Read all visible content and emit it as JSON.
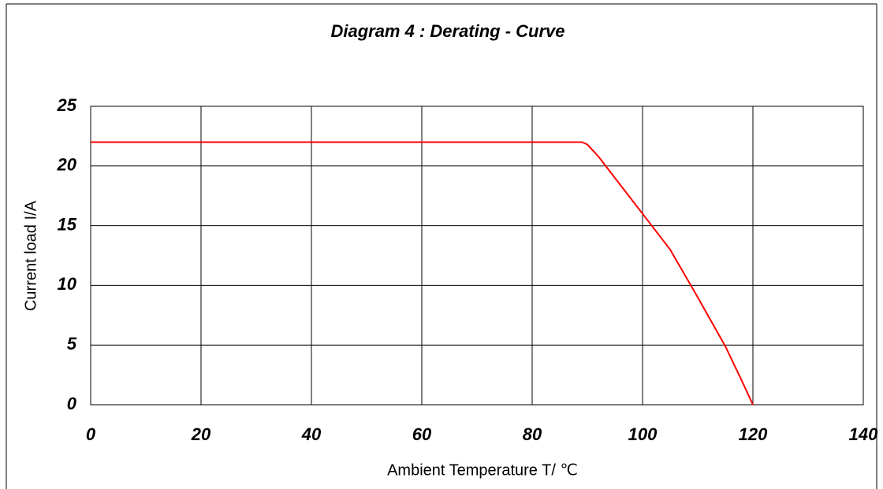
{
  "chart_data": {
    "type": "line",
    "title": "Diagram 4 : Derating -  Curve",
    "x_label": "Ambient Temperature T/ ℃",
    "y_label": "Current load I/A",
    "x": [
      0,
      89,
      90,
      92,
      95,
      100,
      105,
      110,
      115,
      118,
      120
    ],
    "values": [
      22,
      22,
      21.8,
      20.8,
      19,
      16,
      13,
      9,
      4.9,
      2,
      0
    ],
    "color": "#ff0000",
    "xlim": [
      0,
      140
    ],
    "xticks": [
      0,
      20,
      40,
      60,
      80,
      100,
      120,
      140
    ],
    "ylim": [
      0,
      25
    ],
    "yticks": [
      0,
      5,
      10,
      15,
      20,
      25
    ],
    "grid": true
  }
}
